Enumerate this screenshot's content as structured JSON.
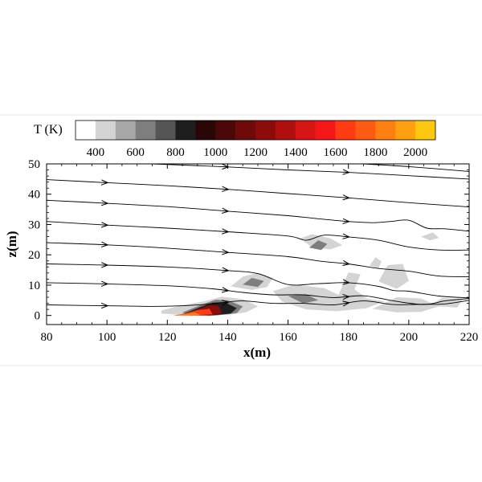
{
  "chart_data": {
    "type": "heatmap",
    "title": "",
    "xlabel": "x(m)",
    "ylabel": "z(m)",
    "xlim": [
      80,
      220
    ],
    "ylim": [
      -3,
      50
    ],
    "x_ticks": [
      80,
      100,
      120,
      140,
      160,
      180,
      200,
      220
    ],
    "y_ticks": [
      0,
      10,
      20,
      30,
      40,
      50
    ],
    "grid": false,
    "colorbar": {
      "title": "T (K)",
      "placement": "top",
      "levels": [
        300,
        400,
        500,
        600,
        700,
        800,
        900,
        1000,
        1100,
        1200,
        1300,
        1400,
        1500,
        1600,
        1700,
        1800,
        1900,
        2000,
        2100
      ],
      "colors": [
        "#ffffff",
        "#d4d4d4",
        "#a8a8a8",
        "#7e7e7e",
        "#555555",
        "#1e1e1e",
        "#2a0606",
        "#4a0808",
        "#6e0a0a",
        "#8c0c0c",
        "#b00f0f",
        "#d81515",
        "#f5161a",
        "#ff3b12",
        "#ff5a12",
        "#ff7f12",
        "#ffa010",
        "#ffc810",
        "#ffff20"
      ],
      "tick_labels": [
        "400",
        "600",
        "800",
        "1000",
        "1200",
        "1400",
        "1600",
        "1800",
        "2000"
      ]
    },
    "streamlines": [
      {
        "points": [
          [
            80,
            3.5
          ],
          [
            100,
            3.2
          ],
          [
            115,
            3.0
          ],
          [
            125,
            3.2
          ],
          [
            132,
            3.6
          ],
          [
            138,
            4.2
          ],
          [
            145,
            4.8
          ],
          [
            155,
            4.0
          ],
          [
            165,
            4.0
          ],
          [
            175,
            3.5
          ],
          [
            185,
            4.8
          ],
          [
            195,
            3.6
          ],
          [
            205,
            3.7
          ],
          [
            212,
            3.8
          ],
          [
            220,
            5.0
          ]
        ]
      },
      {
        "points": [
          [
            80,
            10.8
          ],
          [
            100,
            10.4
          ],
          [
            120,
            9.8
          ],
          [
            135,
            8.8
          ],
          [
            145,
            7.6
          ],
          [
            155,
            6.8
          ],
          [
            165,
            6.8
          ],
          [
            175,
            5.9
          ],
          [
            185,
            6.5
          ],
          [
            195,
            4.8
          ],
          [
            205,
            3.6
          ],
          [
            212,
            4.8
          ],
          [
            220,
            5.6
          ]
        ]
      },
      {
        "points": [
          [
            80,
            17.0
          ],
          [
            100,
            16.6
          ],
          [
            120,
            16.0
          ],
          [
            140,
            14.8
          ],
          [
            150,
            13.8
          ],
          [
            160,
            10.2
          ],
          [
            170,
            10.5
          ],
          [
            180,
            10.8
          ],
          [
            190,
            9.6
          ],
          [
            195,
            8.2
          ],
          [
            200,
            8.0
          ],
          [
            210,
            6.4
          ],
          [
            220,
            5.8
          ]
        ]
      },
      {
        "points": [
          [
            80,
            24.0
          ],
          [
            100,
            23.3
          ],
          [
            120,
            22.2
          ],
          [
            140,
            20.8
          ],
          [
            160,
            19.4
          ],
          [
            170,
            18.0
          ],
          [
            180,
            17.0
          ],
          [
            190,
            15.5
          ],
          [
            200,
            14.6
          ],
          [
            210,
            13.0
          ],
          [
            220,
            12.8
          ]
        ]
      },
      {
        "points": [
          [
            80,
            31.0
          ],
          [
            100,
            29.8
          ],
          [
            120,
            28.8
          ],
          [
            140,
            27.6
          ],
          [
            160,
            26.2
          ],
          [
            166,
            24.8
          ],
          [
            172,
            26.5
          ],
          [
            180,
            25.9
          ],
          [
            190,
            24.8
          ],
          [
            200,
            22.6
          ],
          [
            210,
            21.6
          ],
          [
            220,
            21.6
          ]
        ]
      },
      {
        "points": [
          [
            80,
            38.0
          ],
          [
            100,
            37.0
          ],
          [
            120,
            35.9
          ],
          [
            140,
            34.4
          ],
          [
            160,
            32.9
          ],
          [
            170,
            31.9
          ],
          [
            180,
            31.0
          ],
          [
            188,
            30.6
          ],
          [
            194,
            31.0
          ],
          [
            200,
            31.4
          ],
          [
            206,
            28.8
          ],
          [
            212,
            28.6
          ],
          [
            220,
            27.8
          ]
        ]
      },
      {
        "points": [
          [
            80,
            44.8
          ],
          [
            100,
            43.8
          ],
          [
            120,
            42.8
          ],
          [
            140,
            41.6
          ],
          [
            160,
            40.2
          ],
          [
            180,
            38.8
          ],
          [
            200,
            37.2
          ],
          [
            220,
            35.8
          ]
        ]
      },
      {
        "points": [
          [
            115,
            50.0
          ],
          [
            140,
            49.0
          ],
          [
            160,
            48.0
          ],
          [
            180,
            47.2
          ],
          [
            200,
            46.1
          ],
          [
            220,
            45.0
          ]
        ]
      },
      {
        "points": [
          [
            185,
            50.0
          ],
          [
            200,
            49.1
          ],
          [
            220,
            47.5
          ]
        ]
      }
    ],
    "temperature_regions": [
      {
        "level": "400",
        "polygon": [
          [
            118,
            1.6
          ],
          [
            124,
            3.2
          ],
          [
            132,
            4.6
          ],
          [
            138,
            6.2
          ],
          [
            145,
            5.4
          ],
          [
            150,
            3.0
          ],
          [
            146,
            1.0
          ],
          [
            140,
            0.2
          ],
          [
            132,
            0.0
          ],
          [
            124,
            0.2
          ],
          [
            118,
            0.6
          ]
        ]
      },
      {
        "level": "400",
        "polygon": [
          [
            141,
            9.6
          ],
          [
            145,
            12.8
          ],
          [
            150,
            14.0
          ],
          [
            155,
            12.4
          ],
          [
            153,
            9.4
          ],
          [
            148,
            8.4
          ]
        ]
      },
      {
        "level": "400",
        "polygon": [
          [
            164,
            25.4
          ],
          [
            168,
            26.8
          ],
          [
            174,
            25.4
          ],
          [
            178,
            23.2
          ],
          [
            174,
            21.8
          ],
          [
            168,
            22.4
          ]
        ]
      },
      {
        "level": "400",
        "polygon": [
          [
            155,
            8.0
          ],
          [
            162,
            10.2
          ],
          [
            172,
            9.0
          ],
          [
            178,
            6.2
          ],
          [
            186,
            5.6
          ],
          [
            192,
            4.6
          ],
          [
            186,
            2.4
          ],
          [
            176,
            1.4
          ],
          [
            166,
            2.0
          ],
          [
            158,
            4.6
          ]
        ]
      },
      {
        "level": "400",
        "polygon": [
          [
            176,
            5.2
          ],
          [
            180,
            14.2
          ],
          [
            184,
            13.6
          ],
          [
            182,
            8.6
          ],
          [
            186,
            5.8
          ]
        ]
      },
      {
        "level": "400",
        "polygon": [
          [
            190,
            11.2
          ],
          [
            193,
            16.6
          ],
          [
            198,
            17.0
          ],
          [
            200,
            11.4
          ],
          [
            196,
            8.8
          ]
        ]
      },
      {
        "level": "400",
        "polygon": [
          [
            188,
            2.2
          ],
          [
            196,
            6.0
          ],
          [
            204,
            5.6
          ],
          [
            210,
            3.0
          ],
          [
            204,
            1.2
          ],
          [
            196,
            1.0
          ]
        ]
      },
      {
        "level": "400",
        "polygon": [
          [
            207,
            3.2
          ],
          [
            211,
            5.8
          ],
          [
            218,
            5.4
          ],
          [
            216,
            2.6
          ]
        ]
      },
      {
        "level": "400",
        "polygon": [
          [
            187,
            16.4
          ],
          [
            189,
            19.2
          ],
          [
            191,
            17.8
          ],
          [
            190,
            15.6
          ]
        ]
      },
      {
        "level": "400",
        "polygon": [
          [
            204,
            26.0
          ],
          [
            208,
            27.4
          ],
          [
            210,
            25.6
          ],
          [
            207,
            24.8
          ]
        ]
      },
      {
        "level": "600",
        "polygon": [
          [
            125,
            1.0
          ],
          [
            131,
            3.4
          ],
          [
            136,
            5.2
          ],
          [
            140,
            5.0
          ],
          [
            145,
            3.0
          ],
          [
            143,
            0.8
          ],
          [
            136,
            0.0
          ],
          [
            128,
            0.0
          ]
        ]
      },
      {
        "level": "600",
        "polygon": [
          [
            145,
            10.2
          ],
          [
            148,
            12.4
          ],
          [
            152,
            11.4
          ],
          [
            150,
            9.4
          ]
        ]
      },
      {
        "level": "600",
        "polygon": [
          [
            167,
            22.4
          ],
          [
            170,
            24.8
          ],
          [
            173,
            23.6
          ],
          [
            171,
            21.6
          ]
        ]
      },
      {
        "level": "600",
        "polygon": [
          [
            160,
            6.4
          ],
          [
            166,
            7.0
          ],
          [
            170,
            5.0
          ],
          [
            165,
            4.0
          ]
        ]
      },
      {
        "level": "800",
        "polygon": [
          [
            126,
            0.8
          ],
          [
            131,
            2.8
          ],
          [
            135,
            4.2
          ],
          [
            139,
            4.4
          ],
          [
            143,
            2.4
          ],
          [
            141,
            0.6
          ],
          [
            134,
            0.0
          ]
        ]
      },
      {
        "level": "1200",
        "polygon": [
          [
            124,
            0.2
          ],
          [
            129,
            1.6
          ],
          [
            134,
            3.4
          ],
          [
            137,
            3.2
          ],
          [
            138,
            0.8
          ],
          [
            134,
            0.0
          ]
        ]
      },
      {
        "level": "1600",
        "polygon": [
          [
            122,
            0.0
          ],
          [
            126,
            0.6
          ],
          [
            130,
            1.8
          ],
          [
            134,
            2.2
          ],
          [
            135,
            0.4
          ],
          [
            128,
            0.0
          ]
        ]
      },
      {
        "level": "1800",
        "polygon": [
          [
            122,
            0.0
          ],
          [
            125,
            0.4
          ],
          [
            129,
            1.0
          ],
          [
            131,
            0.2
          ]
        ]
      }
    ]
  }
}
